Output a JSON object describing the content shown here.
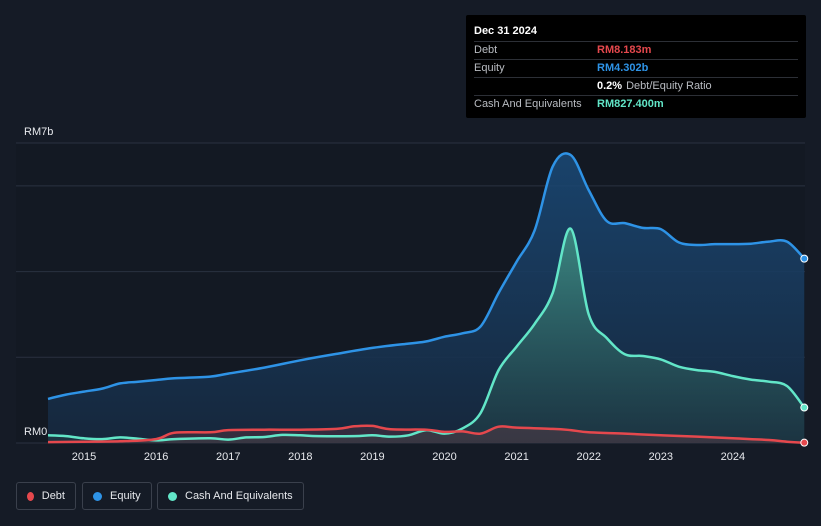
{
  "tooltip": {
    "date": "Dec 31 2024",
    "rows": [
      {
        "label": "Debt",
        "value": "RM8.183m",
        "color": "#e5484d"
      },
      {
        "label": "Equity",
        "value": "RM4.302b",
        "color": "#2e93e6"
      },
      {
        "label": "",
        "value": "0.2%",
        "suffix": "Debt/Equity Ratio",
        "color": "#ffffff"
      },
      {
        "label": "Cash And Equivalents",
        "value": "RM827.400m",
        "color": "#62e6c8"
      }
    ]
  },
  "legend": [
    {
      "label": "Debt",
      "color": "#e5484d"
    },
    {
      "label": "Equity",
      "color": "#2e93e6"
    },
    {
      "label": "Cash And Equivalents",
      "color": "#62e6c8"
    }
  ],
  "chart_data": {
    "type": "area",
    "ylabel_top": "RM7b",
    "ylabel_bottom": "RM0",
    "ylim": [
      0,
      7000
    ],
    "xlim": [
      2014.5,
      2025.0
    ],
    "x_ticks": [
      "2015",
      "2016",
      "2017",
      "2018",
      "2019",
      "2020",
      "2021",
      "2022",
      "2023",
      "2024"
    ],
    "grid": true,
    "units": "RM millions",
    "series": [
      {
        "name": "Debt",
        "color": "#e5484d",
        "points": [
          [
            2014.5,
            20
          ],
          [
            2015.0,
            30
          ],
          [
            2015.5,
            40
          ],
          [
            2016.0,
            90
          ],
          [
            2016.25,
            240
          ],
          [
            2016.75,
            250
          ],
          [
            2017.0,
            300
          ],
          [
            2017.5,
            310
          ],
          [
            2018.0,
            310
          ],
          [
            2018.5,
            330
          ],
          [
            2018.75,
            390
          ],
          [
            2019.0,
            400
          ],
          [
            2019.25,
            320
          ],
          [
            2019.75,
            310
          ],
          [
            2020.0,
            260
          ],
          [
            2020.25,
            270
          ],
          [
            2020.5,
            220
          ],
          [
            2020.75,
            380
          ],
          [
            2021.0,
            360
          ],
          [
            2021.5,
            330
          ],
          [
            2021.75,
            300
          ],
          [
            2022.0,
            250
          ],
          [
            2022.5,
            220
          ],
          [
            2023.0,
            180
          ],
          [
            2023.5,
            150
          ],
          [
            2024.0,
            110
          ],
          [
            2024.5,
            70
          ],
          [
            2024.75,
            30
          ],
          [
            2024.99,
            8.183
          ]
        ]
      },
      {
        "name": "Equity",
        "color": "#2e93e6",
        "points": [
          [
            2014.5,
            1030
          ],
          [
            2014.75,
            1130
          ],
          [
            2015.0,
            1200
          ],
          [
            2015.25,
            1270
          ],
          [
            2015.5,
            1390
          ],
          [
            2015.75,
            1430
          ],
          [
            2016.0,
            1470
          ],
          [
            2016.25,
            1510
          ],
          [
            2016.75,
            1550
          ],
          [
            2017.0,
            1620
          ],
          [
            2017.5,
            1760
          ],
          [
            2018.0,
            1930
          ],
          [
            2018.5,
            2080
          ],
          [
            2019.0,
            2220
          ],
          [
            2019.5,
            2320
          ],
          [
            2019.75,
            2370
          ],
          [
            2020.0,
            2480
          ],
          [
            2020.25,
            2560
          ],
          [
            2020.5,
            2720
          ],
          [
            2020.75,
            3500
          ],
          [
            2021.0,
            4230
          ],
          [
            2021.25,
            4960
          ],
          [
            2021.5,
            6450
          ],
          [
            2021.75,
            6720
          ],
          [
            2022.0,
            5900
          ],
          [
            2022.25,
            5180
          ],
          [
            2022.5,
            5130
          ],
          [
            2022.75,
            5020
          ],
          [
            2023.0,
            4990
          ],
          [
            2023.25,
            4680
          ],
          [
            2023.5,
            4620
          ],
          [
            2023.75,
            4640
          ],
          [
            2024.0,
            4640
          ],
          [
            2024.25,
            4650
          ],
          [
            2024.5,
            4700
          ],
          [
            2024.75,
            4700
          ],
          [
            2024.99,
            4302
          ]
        ]
      },
      {
        "name": "Cash And Equivalents",
        "color": "#62e6c8",
        "points": [
          [
            2014.5,
            180
          ],
          [
            2014.75,
            160
          ],
          [
            2015.0,
            110
          ],
          [
            2015.25,
            90
          ],
          [
            2015.5,
            130
          ],
          [
            2015.75,
            100
          ],
          [
            2016.0,
            60
          ],
          [
            2016.25,
            90
          ],
          [
            2016.75,
            110
          ],
          [
            2017.0,
            80
          ],
          [
            2017.25,
            130
          ],
          [
            2017.5,
            140
          ],
          [
            2017.75,
            190
          ],
          [
            2018.0,
            180
          ],
          [
            2018.25,
            160
          ],
          [
            2018.75,
            160
          ],
          [
            2019.0,
            180
          ],
          [
            2019.25,
            150
          ],
          [
            2019.5,
            180
          ],
          [
            2019.75,
            300
          ],
          [
            2020.0,
            220
          ],
          [
            2020.25,
            340
          ],
          [
            2020.5,
            700
          ],
          [
            2020.75,
            1700
          ],
          [
            2021.0,
            2250
          ],
          [
            2021.25,
            2780
          ],
          [
            2021.5,
            3500
          ],
          [
            2021.75,
            5000
          ],
          [
            2022.0,
            3000
          ],
          [
            2022.25,
            2450
          ],
          [
            2022.5,
            2070
          ],
          [
            2022.75,
            2030
          ],
          [
            2023.0,
            1950
          ],
          [
            2023.25,
            1780
          ],
          [
            2023.5,
            1700
          ],
          [
            2023.75,
            1660
          ],
          [
            2024.0,
            1560
          ],
          [
            2024.25,
            1480
          ],
          [
            2024.5,
            1430
          ],
          [
            2024.75,
            1330
          ],
          [
            2024.99,
            827.4
          ]
        ]
      }
    ]
  }
}
